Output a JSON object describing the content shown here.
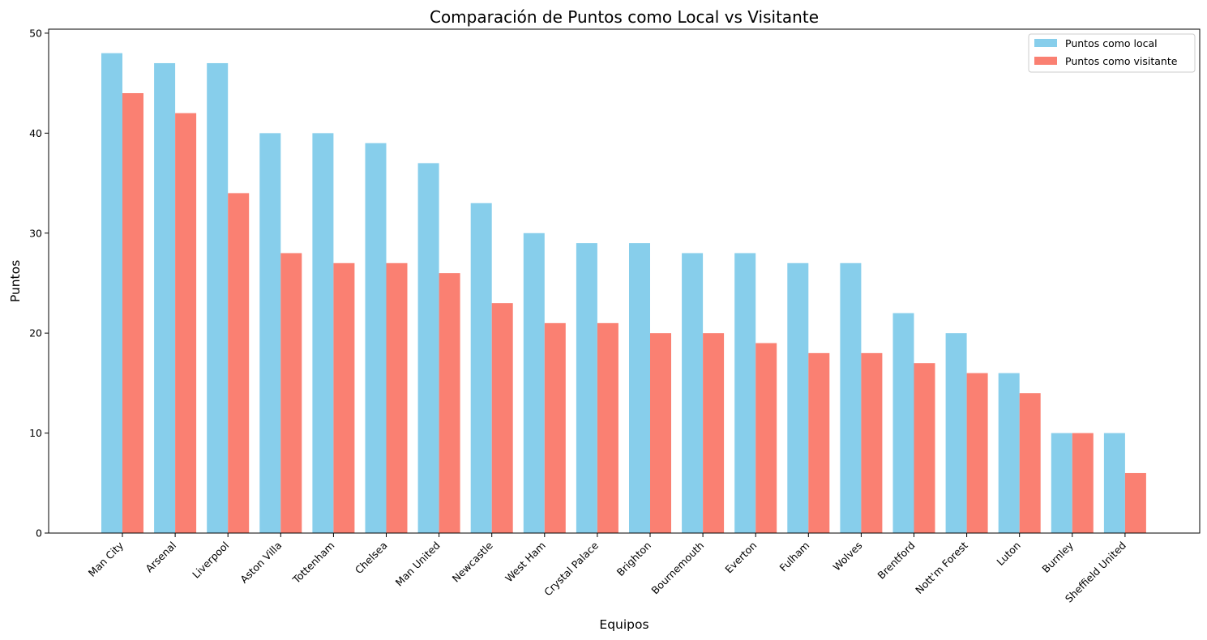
{
  "chart_data": {
    "type": "bar",
    "title": "Comparación de Puntos como Local vs Visitante",
    "xlabel": "Equipos",
    "ylabel": "Puntos",
    "ylim": [
      0,
      50.4
    ],
    "yticks": [
      0,
      10,
      20,
      30,
      40,
      50
    ],
    "grid": false,
    "legend_position": "top-right",
    "categories": [
      "Man City",
      "Arsenal",
      "Liverpool",
      "Aston Villa",
      "Tottenham",
      "Chelsea",
      "Man United",
      "Newcastle",
      "West Ham",
      "Crystal Palace",
      "Brighton",
      "Bournemouth",
      "Everton",
      "Fulham",
      "Wolves",
      "Brentford",
      "Nott'm Forest",
      "Luton",
      "Burnley",
      "Sheffield United"
    ],
    "series": [
      {
        "name": "Puntos como local",
        "color": "#87ceeb",
        "values": [
          48,
          47,
          47,
          40,
          40,
          39,
          37,
          33,
          30,
          29,
          29,
          28,
          28,
          27,
          27,
          22,
          20,
          16,
          10,
          10
        ]
      },
      {
        "name": "Puntos como visitante",
        "color": "#fa8072",
        "values": [
          44,
          42,
          34,
          28,
          27,
          27,
          26,
          23,
          21,
          21,
          20,
          20,
          19,
          18,
          18,
          17,
          16,
          14,
          10,
          6
        ]
      }
    ]
  }
}
